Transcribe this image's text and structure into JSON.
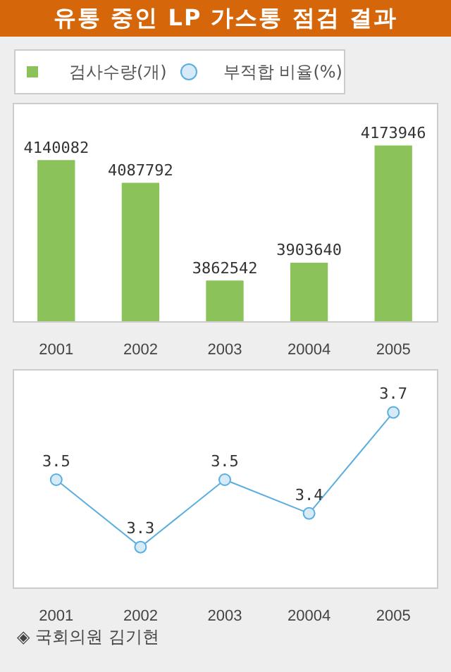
{
  "chart_data": [
    {
      "type": "bar",
      "title": "유통 중인 LP 가스통 점검 결과",
      "categories": [
        "2001",
        "2002",
        "2003",
        "20004",
        "2005"
      ],
      "series": [
        {
          "name": "검사수량(개)",
          "color": "#8bc25a",
          "values": [
            4140082,
            4087792,
            3862542,
            3903640,
            4173946
          ]
        }
      ],
      "ylim": [
        3770000,
        4270000
      ],
      "tick_labels": "x",
      "data_labels": true,
      "grid": false,
      "legend": "top"
    },
    {
      "type": "line",
      "categories": [
        "2001",
        "2002",
        "2003",
        "20004",
        "2005"
      ],
      "series": [
        {
          "name": "부적합 비율(%)",
          "color": "#5aaee0",
          "values": [
            3.5,
            3.3,
            3.5,
            3.4,
            3.7
          ]
        }
      ],
      "ylim": [
        3.18,
        3.82
      ],
      "tick_labels": "x",
      "data_labels": true,
      "grid": false,
      "legend": "top",
      "marker": "circle",
      "line_style": "solid",
      "annotations": [
        "◈ 국회의원 김기현"
      ]
    }
  ]
}
